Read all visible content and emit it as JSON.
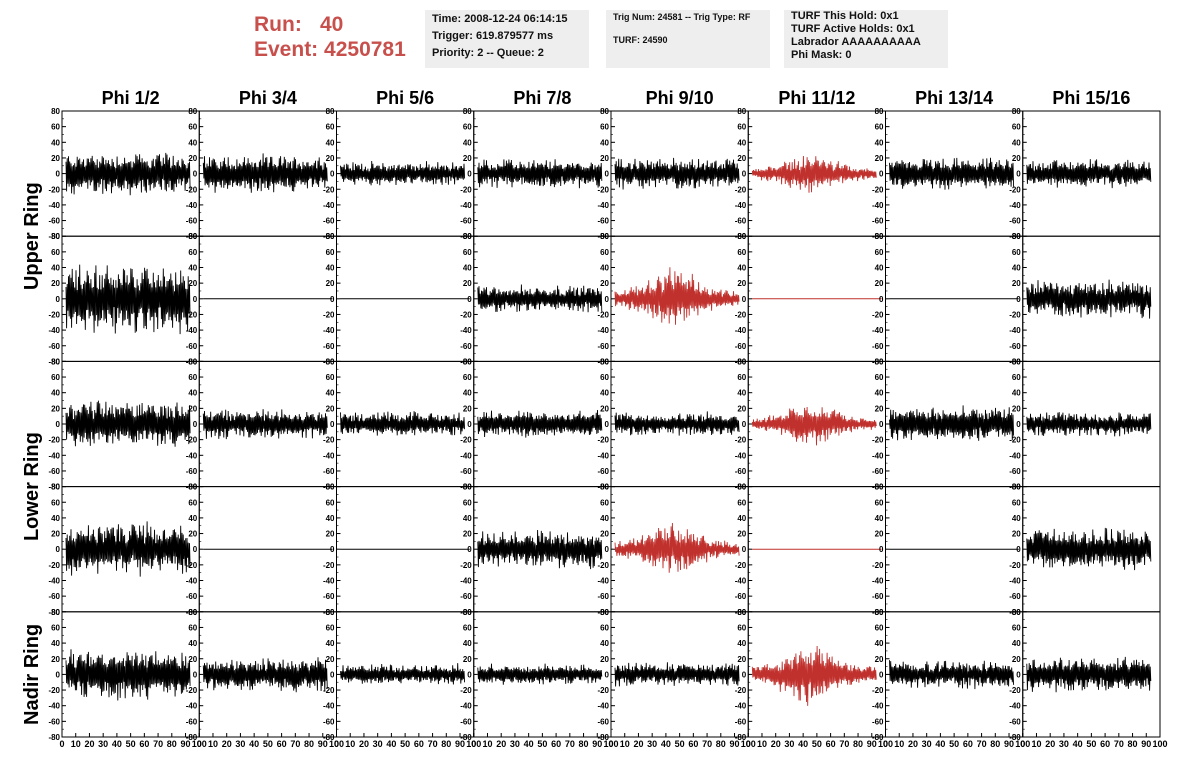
{
  "header": {
    "run_label": "Run:",
    "run_value": "40",
    "event_label": "Event:",
    "event_value": "4250781"
  },
  "info_time": {
    "time": "Time: 2008-12-24 06:14:15",
    "trigger": "Trigger: 619.879577 ms",
    "priority": "Priority: 2 -- Queue: 2"
  },
  "info_trig": {
    "trig": "Trig Num: 24581 -- Trig Type: RF",
    "turf": "TURF: 24590"
  },
  "info_turf": {
    "this_hold": "TURF This Hold: 0x1",
    "active_holds": "TURF Active Holds: 0x1",
    "labrador": "Labrador AAAAAAAAAA",
    "phi_mask": "Phi Mask: 0"
  },
  "chart_data": {
    "type": "line",
    "columns": [
      "Phi 1/2",
      "Phi 3/4",
      "Phi 5/6",
      "Phi 7/8",
      "Phi 9/10",
      "Phi 11/12",
      "Phi 13/14",
      "Phi 15/16"
    ],
    "ring_labels": [
      "Upper Ring",
      "Lower Ring",
      "Nadir Ring"
    ],
    "ylim": [
      -80,
      80
    ],
    "yticks": [
      -80,
      -60,
      -40,
      -20,
      0,
      20,
      40,
      60,
      80
    ],
    "xlim": [
      0,
      100
    ],
    "xticks": [
      0,
      10,
      20,
      30,
      40,
      50,
      60,
      70,
      80,
      90,
      100
    ],
    "highlight_color": "#c0302c",
    "trace_color": "#000000",
    "rows": [
      {
        "ring": "Upper Ring",
        "amplitude": [
          25,
          22,
          14,
          17,
          18,
          18,
          18,
          17
        ],
        "flat": [
          false,
          false,
          false,
          false,
          false,
          false,
          false,
          false
        ],
        "highlight": [
          false,
          false,
          false,
          false,
          false,
          true,
          false,
          false
        ]
      },
      {
        "ring": "Upper Ring",
        "amplitude": [
          40,
          0,
          0,
          16,
          28,
          0,
          0,
          22
        ],
        "flat": [
          false,
          true,
          true,
          false,
          false,
          true,
          true,
          false
        ],
        "highlight": [
          false,
          false,
          false,
          false,
          true,
          true,
          false,
          false
        ]
      },
      {
        "ring": "Lower Ring",
        "amplitude": [
          28,
          18,
          14,
          16,
          14,
          20,
          20,
          14
        ],
        "flat": [
          false,
          false,
          false,
          false,
          false,
          false,
          false,
          false
        ],
        "highlight": [
          false,
          false,
          false,
          false,
          false,
          true,
          false,
          false
        ]
      },
      {
        "ring": "Lower Ring",
        "amplitude": [
          30,
          0,
          0,
          22,
          24,
          0,
          0,
          24
        ],
        "flat": [
          false,
          true,
          true,
          false,
          false,
          true,
          true,
          false
        ],
        "highlight": [
          false,
          false,
          false,
          false,
          true,
          true,
          false,
          false
        ]
      },
      {
        "ring": "Nadir Ring",
        "amplitude": [
          30,
          20,
          12,
          12,
          14,
          28,
          16,
          20
        ],
        "flat": [
          false,
          false,
          false,
          false,
          false,
          false,
          false,
          false
        ],
        "highlight": [
          false,
          false,
          false,
          false,
          false,
          true,
          false,
          false
        ]
      }
    ]
  }
}
